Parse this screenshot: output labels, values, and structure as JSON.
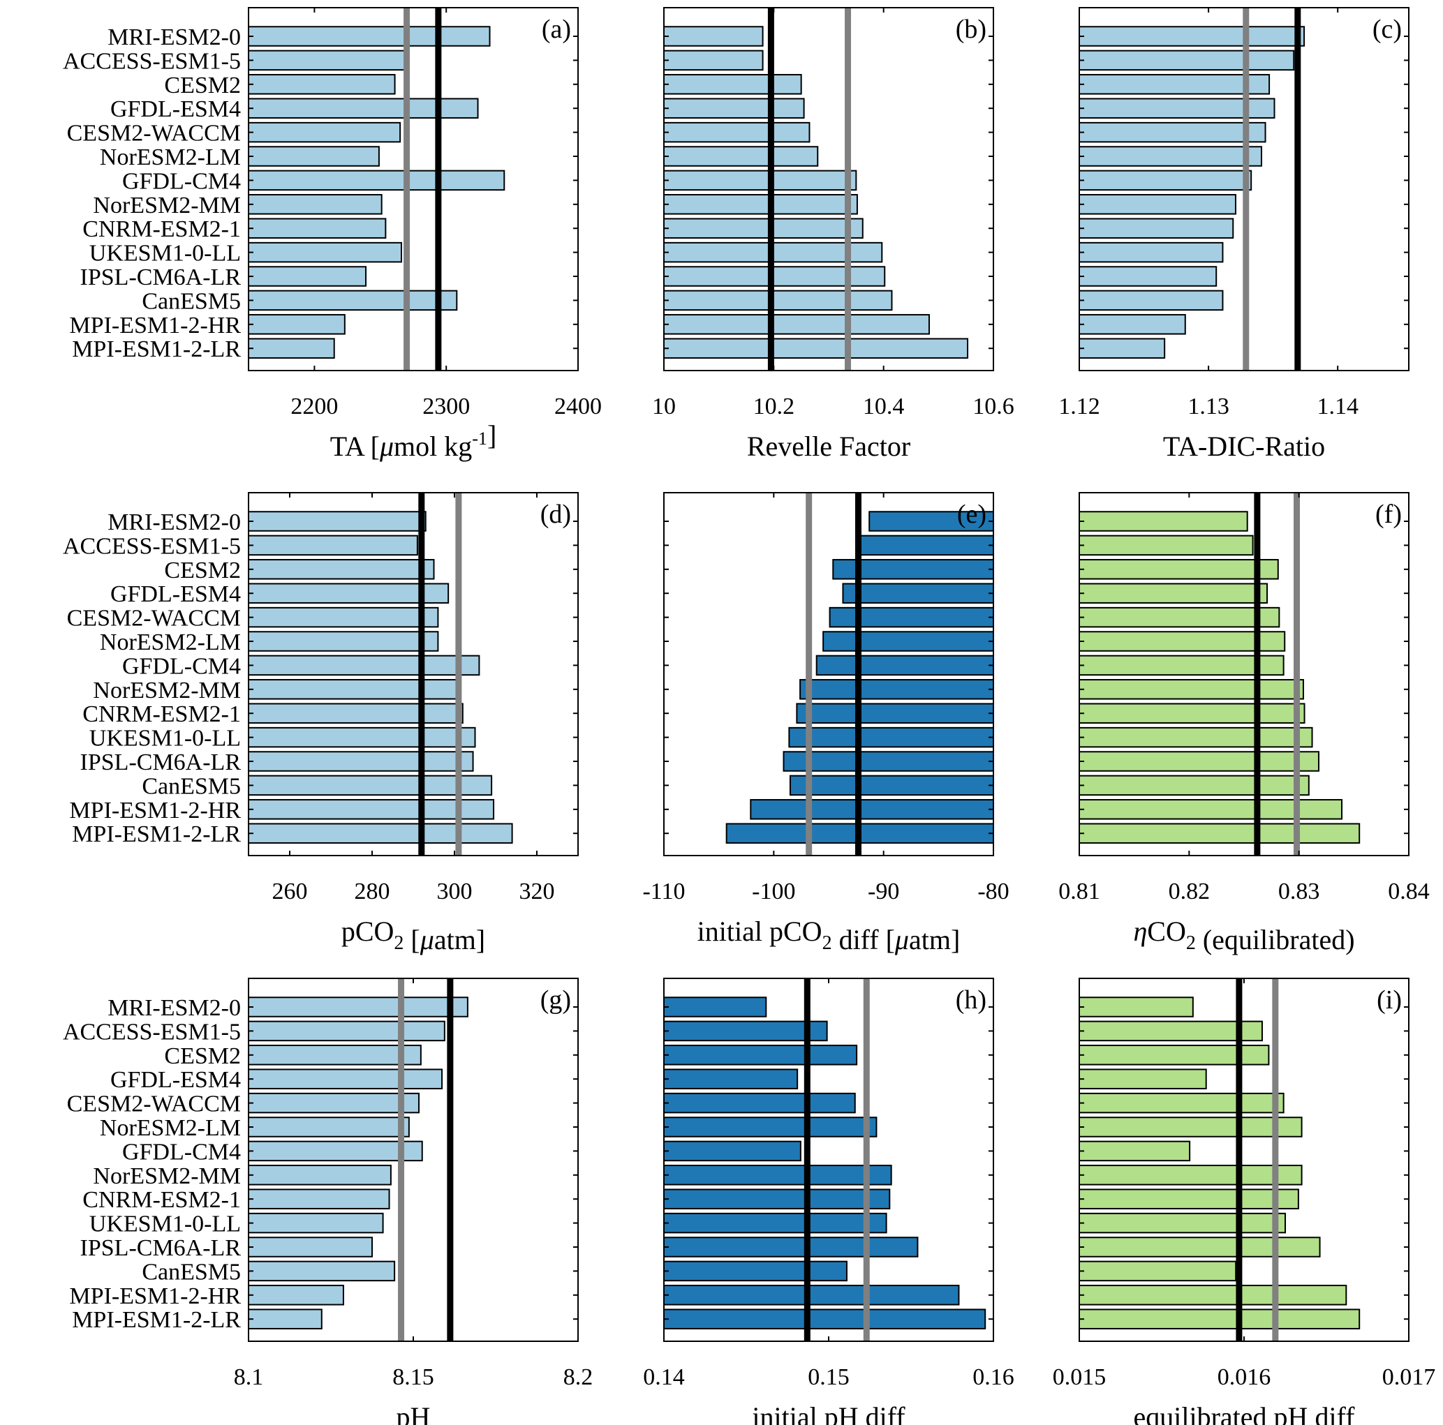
{
  "models": [
    "MRI-ESM2-0",
    "ACCESS-ESM1-5",
    "CESM2",
    "GFDL-ESM4",
    "CESM2-WACCM",
    "NorESM2-LM",
    "GFDL-CM4",
    "NorESM2-MM",
    "CNRM-ESM2-1",
    "UKESM1-0-LL",
    "IPSL-CM6A-LR",
    "CanESM5",
    "MPI-ESM1-2-HR",
    "MPI-ESM1-2-LR"
  ],
  "colors": {
    "light_blue": "#a6cee3",
    "dark_blue": "#1f78b4",
    "light_green": "#b2df8a",
    "black_line": "#000000",
    "gray_line": "#808080"
  },
  "chart_data": [
    {
      "id": "a",
      "panel_label": "(a)",
      "type": "bar",
      "orientation": "horizontal",
      "xlabel": "TA [",
      "xlabel_mu": "μ",
      "xlabel_rest": "mol kg",
      "xlabel_sup": "-1",
      "xlabel_end": "]",
      "xlim": [
        2150,
        2400
      ],
      "xticks": [
        2200,
        2300,
        2400
      ],
      "tick_labels": [
        "2200",
        "2300",
        "2400"
      ],
      "bar_color": "light_blue",
      "values": [
        2333,
        2270,
        2261,
        2324,
        2265,
        2249,
        2344,
        2251,
        2254,
        2266,
        2239,
        2308,
        2223,
        2215
      ],
      "black_line": 2294,
      "gray_line": 2270
    },
    {
      "id": "b",
      "panel_label": "(b)",
      "type": "bar",
      "orientation": "horizontal",
      "xlabel": "Revelle Factor",
      "xlim": [
        10,
        10.6
      ],
      "xticks": [
        10,
        10.2,
        10.4,
        10.6
      ],
      "tick_labels": [
        "10",
        "10.2",
        "10.4",
        "10.6"
      ],
      "bar_color": "light_blue",
      "values": [
        10.18,
        10.18,
        10.25,
        10.255,
        10.265,
        10.28,
        10.35,
        10.352,
        10.362,
        10.397,
        10.402,
        10.415,
        10.483,
        10.553
      ],
      "black_line": 10.195,
      "gray_line": 10.335
    },
    {
      "id": "c",
      "panel_label": "(c)",
      "type": "bar",
      "orientation": "horizontal",
      "xlabel": "TA-DIC-Ratio",
      "xlim": [
        1.12,
        1.1455
      ],
      "xticks": [
        1.12,
        1.13,
        1.14
      ],
      "tick_labels": [
        "1.12",
        "1.13",
        "1.14"
      ],
      "bar_color": "light_blue",
      "values": [
        1.1374,
        1.1366,
        1.1347,
        1.1351,
        1.1344,
        1.1341,
        1.1333,
        1.1321,
        1.1319,
        1.1311,
        1.1306,
        1.1311,
        1.1282,
        1.1266
      ],
      "black_line": 1.1369,
      "gray_line": 1.1329
    },
    {
      "id": "d",
      "panel_label": "(d)",
      "type": "bar",
      "orientation": "horizontal",
      "xlabel": "pCO",
      "xlabel_sub": "2",
      "xlabel_rest": " [",
      "xlabel_mu": "μ",
      "xlabel_end": "atm]",
      "xlim": [
        250,
        330
      ],
      "xticks": [
        260,
        280,
        300,
        320
      ],
      "tick_labels": [
        "260",
        "280",
        "300",
        "320"
      ],
      "bar_color": "light_blue",
      "values": [
        293,
        291,
        295,
        298.5,
        296,
        296,
        306,
        301,
        302,
        305,
        304.5,
        309,
        309.5,
        314
      ],
      "black_line": 292,
      "gray_line": 301
    },
    {
      "id": "e",
      "panel_label": "(e)",
      "type": "bar",
      "orientation": "horizontal",
      "xlabel": "initial pCO",
      "xlabel_sub": "2",
      "xlabel_rest": " diff [",
      "xlabel_mu": "μ",
      "xlabel_end": "atm]",
      "xlim": [
        -110,
        -80
      ],
      "xticks": [
        -110,
        -100,
        -90,
        -80
      ],
      "tick_labels": [
        "-110",
        "-100",
        "-90",
        "-80"
      ],
      "bar_color": "dark_blue",
      "values": [
        -91.3,
        -92.3,
        -94.6,
        -93.7,
        -94.9,
        -95.5,
        -96.1,
        -97.6,
        -97.9,
        -98.6,
        -99.1,
        -98.5,
        -102.1,
        -104.3
      ],
      "black_line": -92.3,
      "gray_line": -96.8
    },
    {
      "id": "f",
      "panel_label": "(f)",
      "type": "bar",
      "orientation": "horizontal",
      "xlabel_eta": "η",
      "xlabel": "CO",
      "xlabel_sub": "2",
      "xlabel_end": " (equilibrated)",
      "xlim": [
        0.81,
        0.84
      ],
      "xticks": [
        0.81,
        0.82,
        0.83,
        0.84
      ],
      "tick_labels": [
        "0.81",
        "0.82",
        "0.83",
        "0.84"
      ],
      "bar_color": "light_green",
      "values": [
        0.8253,
        0.8258,
        0.8281,
        0.8271,
        0.8282,
        0.8287,
        0.8286,
        0.8304,
        0.8305,
        0.8312,
        0.8318,
        0.8309,
        0.8339,
        0.8355
      ],
      "black_line": 0.8262,
      "gray_line": 0.8298
    },
    {
      "id": "g",
      "panel_label": "(g)",
      "type": "bar",
      "orientation": "horizontal",
      "xlabel": "pH",
      "xlim": [
        8.1,
        8.2
      ],
      "xticks": [
        8.1,
        8.15,
        8.2
      ],
      "tick_labels": [
        "8.1",
        "8.15",
        "8.2"
      ],
      "bar_color": "light_blue",
      "values": [
        8.1665,
        8.1595,
        8.1523,
        8.1587,
        8.1517,
        8.1487,
        8.1527,
        8.1432,
        8.1427,
        8.1408,
        8.1375,
        8.1443,
        8.1288,
        8.1222
      ],
      "black_line": 8.1612,
      "gray_line": 8.1463
    },
    {
      "id": "h",
      "panel_label": "(h)",
      "type": "bar",
      "orientation": "horizontal",
      "xlabel": "initial pH diff",
      "xlim": [
        0.14,
        0.16
      ],
      "xticks": [
        0.14,
        0.15,
        0.16
      ],
      "tick_labels": [
        "0.14",
        "0.15",
        "0.16"
      ],
      "bar_color": "dark_blue",
      "values": [
        0.1462,
        0.1499,
        0.1517,
        0.1481,
        0.1516,
        0.1529,
        0.1483,
        0.1538,
        0.1537,
        0.1535,
        0.1554,
        0.1511,
        0.1579,
        0.1595
      ],
      "black_line": 0.1487,
      "gray_line": 0.1523
    },
    {
      "id": "i",
      "panel_label": "(i)",
      "type": "bar",
      "orientation": "horizontal",
      "xlabel": "equilibrated pH diff",
      "xlim": [
        0.015,
        0.017
      ],
      "xticks": [
        0.015,
        0.016,
        0.017
      ],
      "tick_labels": [
        "0.015",
        "0.016",
        "0.017"
      ],
      "bar_color": "light_green",
      "values": [
        0.01569,
        0.01611,
        0.01615,
        0.01577,
        0.01624,
        0.01635,
        0.01567,
        0.01635,
        0.01633,
        0.01625,
        0.01646,
        0.01595,
        0.01662,
        0.0167
      ],
      "black_line": 0.01597,
      "gray_line": 0.01619
    }
  ]
}
